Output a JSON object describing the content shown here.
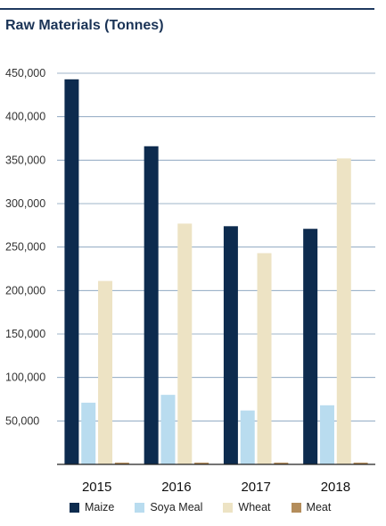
{
  "chart_data": {
    "type": "bar",
    "title": "Raw Materials (Tonnes)",
    "categories": [
      "2015",
      "2016",
      "2017",
      "2018"
    ],
    "series": [
      {
        "name": "Maize",
        "color": "#0d2b4e",
        "values": [
          443000,
          366000,
          274000,
          271000
        ]
      },
      {
        "name": "Soya Meal",
        "color": "#b9dcef",
        "values": [
          71000,
          80000,
          62000,
          68000
        ]
      },
      {
        "name": "Wheat",
        "color": "#ede3c4",
        "values": [
          211000,
          277000,
          243000,
          352000
        ]
      },
      {
        "name": "Meat",
        "color": "#b48d5b",
        "values": [
          2000,
          2000,
          2000,
          2000
        ]
      }
    ],
    "yticks": [
      "450,000",
      "400,000",
      "350,000",
      "300,000",
      "250,000",
      "200,000",
      "150,000",
      "100,000",
      "50,000"
    ],
    "ylim": [
      0,
      450000
    ],
    "grid": true,
    "legend_position": "bottom"
  }
}
